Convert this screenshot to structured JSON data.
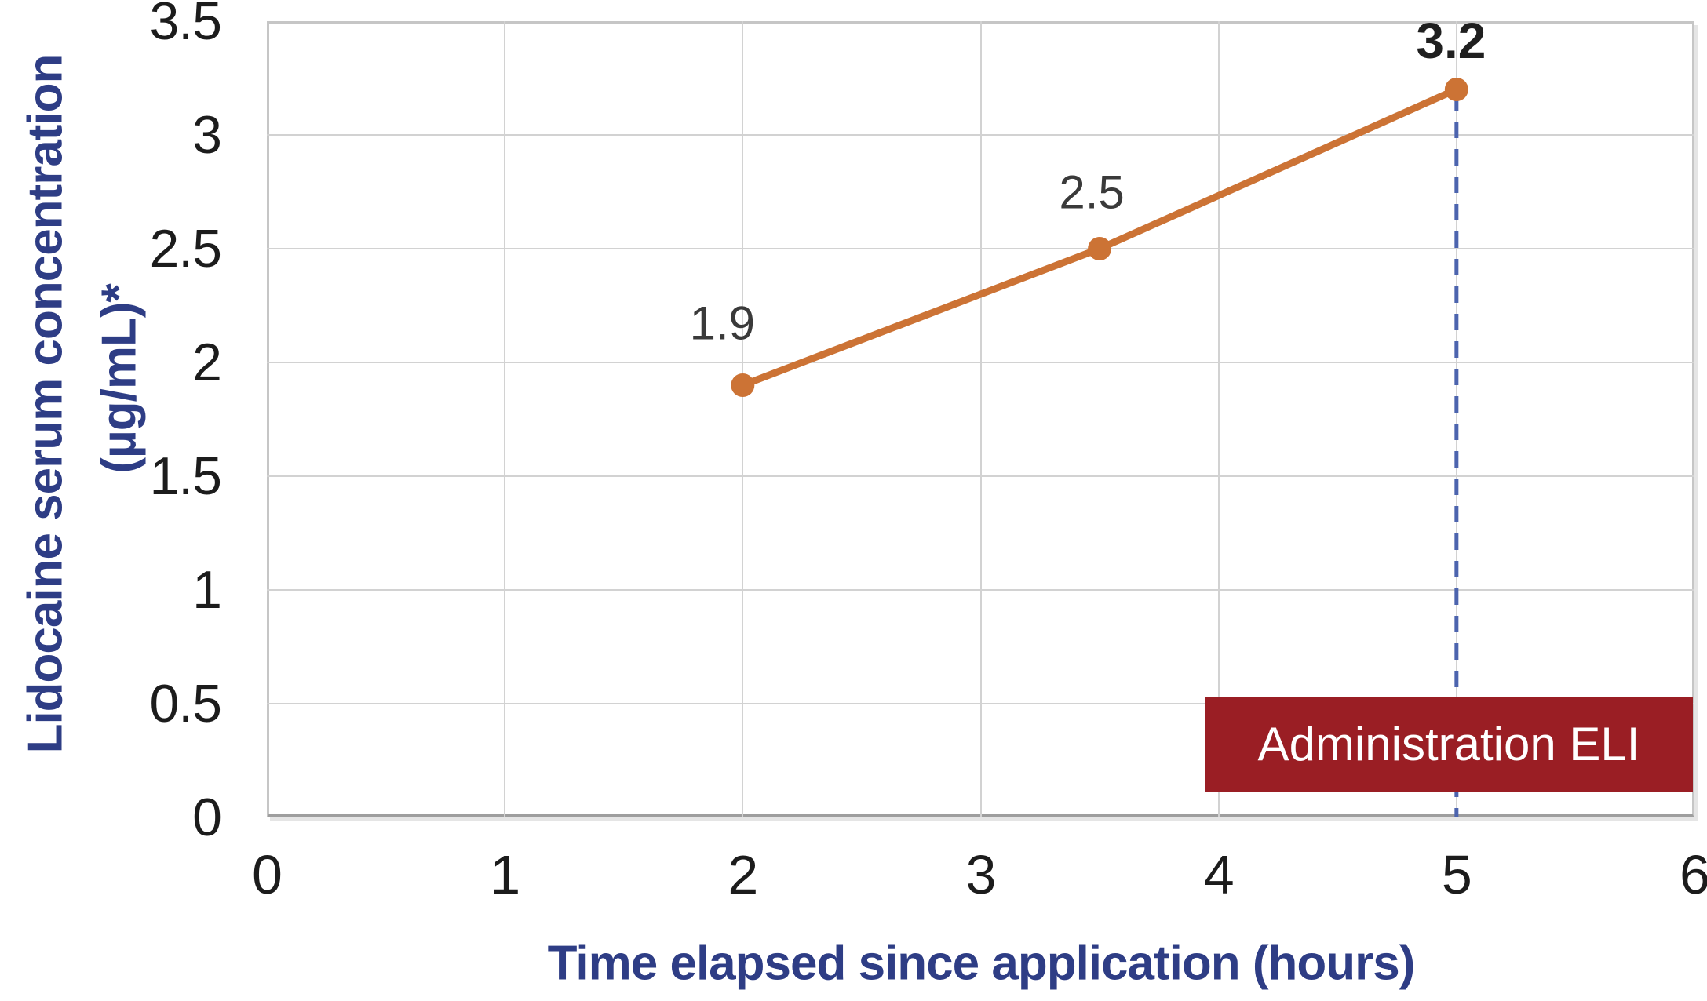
{
  "chart_data": {
    "type": "line",
    "title": "",
    "xlabel": "Time elapsed since application (hours)",
    "ylabel": "Lidocaine serum concentration (µg/mL)*",
    "ylabel_lines": [
      "Lidocaine serum concentration",
      "(µg/mL)*"
    ],
    "xlim": [
      0,
      6
    ],
    "ylim": [
      0,
      3.5
    ],
    "x_ticks": [
      "0",
      "1",
      "2",
      "3",
      "4",
      "5",
      "6"
    ],
    "y_ticks": [
      "0",
      "0.5",
      "1",
      "1.5",
      "2",
      "2.5",
      "3",
      "3.5"
    ],
    "grid": true,
    "legend": false,
    "series": [
      {
        "x": [
          2,
          3.5,
          5
        ],
        "y": [
          1.9,
          2.5,
          3.2
        ],
        "point_labels": [
          "1.9",
          "2.5",
          "3.2"
        ],
        "point_labels_bold": [
          false,
          false,
          true
        ],
        "color": "#cc7335"
      }
    ],
    "annotations": {
      "vline": {
        "x": 5,
        "style": "dashed",
        "color": "#4c64ae"
      },
      "box_label": {
        "text": "Administration ELI",
        "fill": "#9a1e24",
        "text_color": "#ffffff"
      }
    }
  },
  "colors": {
    "background": "#ffffff",
    "axis_title": "#2e3d85",
    "tick_labels": "#1c1c1c",
    "grid": "#d2d2d2",
    "data_label": "#3a3a3a",
    "data_label_emphasis": "#1f1f1f",
    "series_line": "#cc7335",
    "dashed_line": "#4c64ae",
    "annotation_box": "#9a1e24"
  }
}
